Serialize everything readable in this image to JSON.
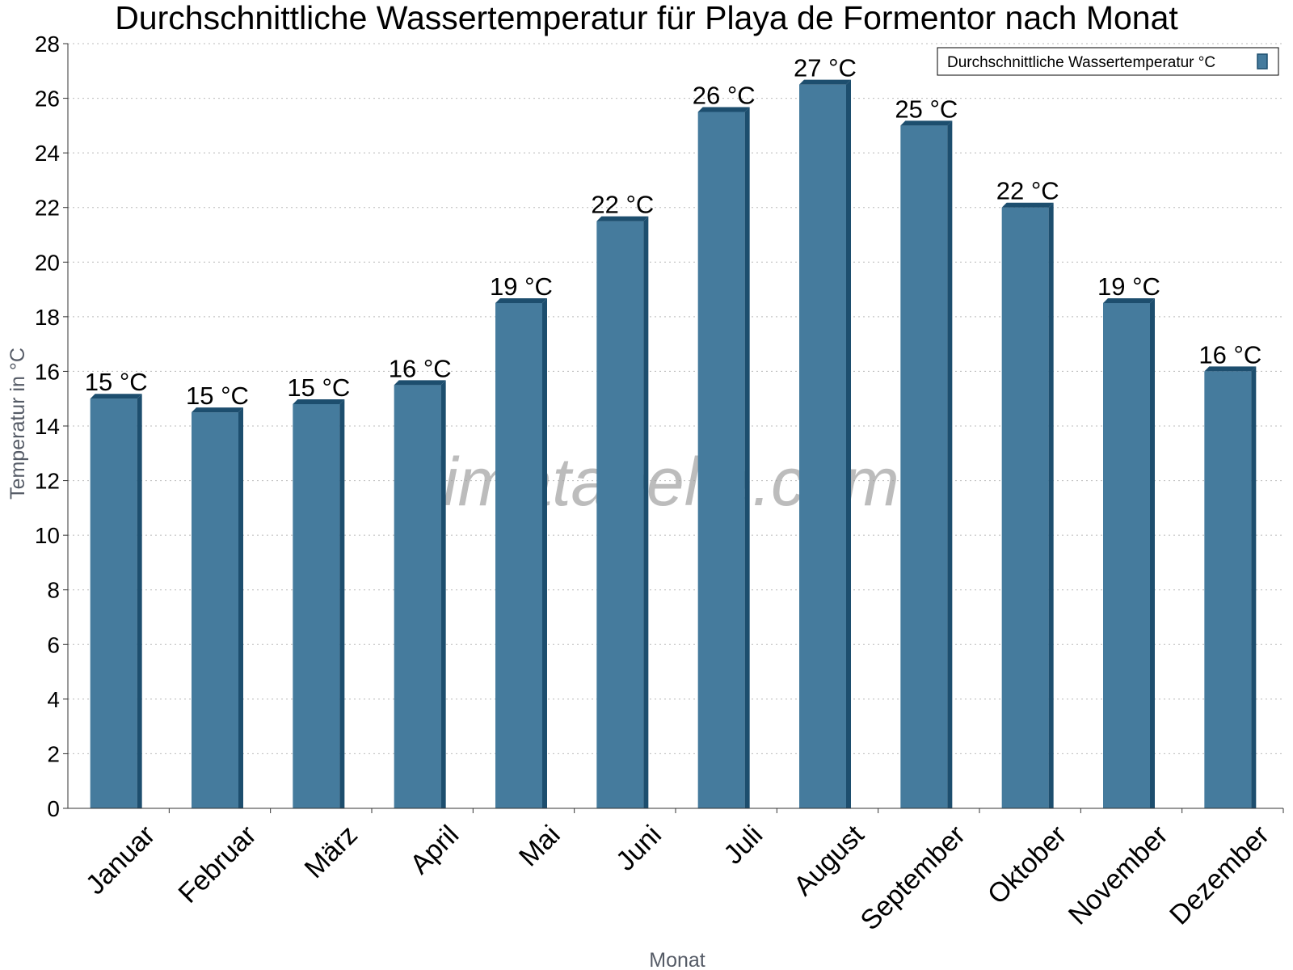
{
  "chart_data": {
    "type": "bar",
    "title": "Durchschnittliche Wassertemperatur für Playa de Formentor nach Monat",
    "xlabel": "Monat",
    "ylabel": "Temperatur in °C",
    "categories": [
      "Januar",
      "Februar",
      "März",
      "April",
      "Mai",
      "Juni",
      "Juli",
      "August",
      "September",
      "Oktober",
      "November",
      "Dezember"
    ],
    "series": [
      {
        "name": "Durchschnittliche Wassertemperatur °C",
        "values": [
          15.0,
          14.5,
          14.8,
          15.5,
          18.5,
          21.5,
          25.5,
          26.5,
          25.0,
          22.0,
          18.5,
          16.0
        ],
        "labels": [
          "15 °C",
          "15 °C",
          "15 °C",
          "16 °C",
          "19 °C",
          "22 °C",
          "26 °C",
          "27 °C",
          "25 °C",
          "22 °C",
          "19 °C",
          "16 °C"
        ],
        "color": "#457b9d",
        "edge_color": "#1d4e6e"
      }
    ],
    "ylim": [
      0,
      28
    ],
    "yticks": [
      0,
      2,
      4,
      6,
      8,
      10,
      12,
      14,
      16,
      18,
      20,
      22,
      24,
      26,
      28
    ],
    "grid": true,
    "legend": "top-right",
    "watermark": "klimatabelle.com"
  }
}
